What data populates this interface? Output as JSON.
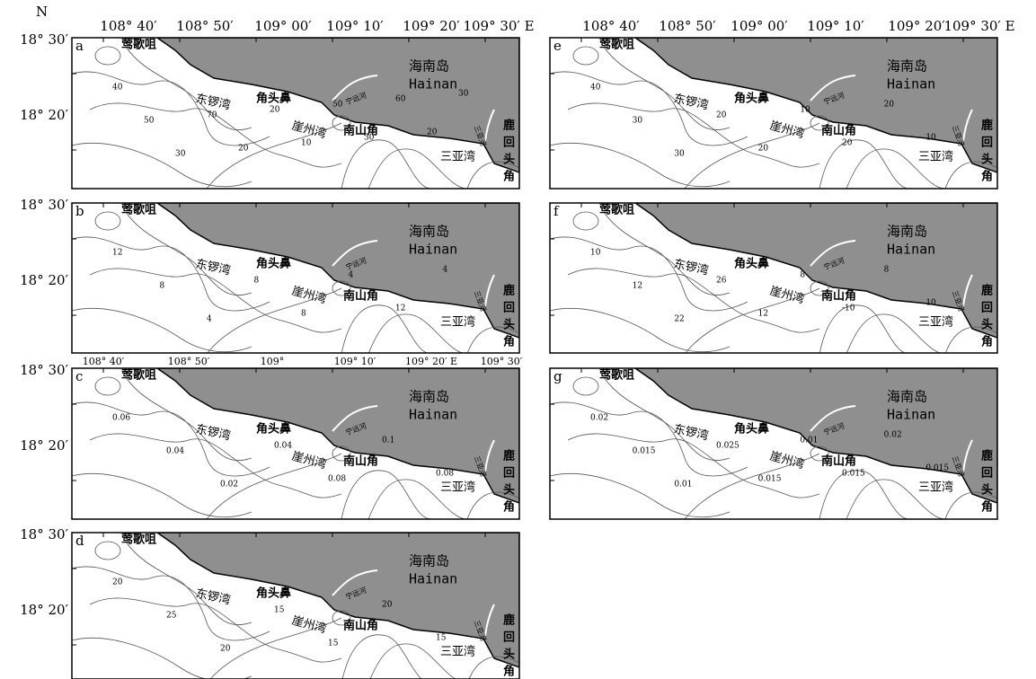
{
  "north_label": "N",
  "longitude_labels": [
    "108° 40′",
    "108° 50′",
    "109° 00′",
    "109° 10′",
    "109° 20′",
    "109° 30′ E"
  ],
  "latitude_labels": [
    "18° 30′",
    "18° 20′"
  ],
  "panel_c_longitude_labels": [
    "108° 40′",
    "108° 50′",
    "109°",
    "109° 10′",
    "109° 20′ E",
    "109° 30′"
  ],
  "place_names": {
    "island_cn": "海南岛",
    "island_en": "Hainan",
    "yinggezui": "莺歌咀",
    "dongluo_bay": "东锣湾",
    "jiaotou_cape": "角头鼻",
    "yazhou_bay": "崖州湾",
    "nanshan_cape": "南山角",
    "sanya_bay": "三亚湾",
    "luhuitou_cape": [
      "鹿",
      "回",
      "头",
      "角"
    ],
    "ningyuan_river": "宁远河",
    "sanya_river": "三亚河"
  },
  "panels": [
    {
      "letter": "a",
      "contour_labels": [
        "40",
        "50",
        "30",
        "70",
        "20",
        "20",
        "10",
        "50",
        "30",
        "60",
        "20",
        "30"
      ]
    },
    {
      "letter": "b",
      "contour_labels": [
        "12",
        "8",
        "4",
        "8",
        "8",
        "4",
        "12",
        "4"
      ]
    },
    {
      "letter": "c",
      "contour_labels": [
        "0.06",
        "0.04",
        "0.02",
        "0.04",
        "0.08",
        "0.1",
        "0.08"
      ]
    },
    {
      "letter": "d",
      "contour_labels": [
        "20",
        "25",
        "20",
        "15",
        "15",
        "20",
        "15"
      ]
    },
    {
      "letter": "e",
      "contour_labels": [
        "40",
        "30",
        "30",
        "20",
        "20",
        "10",
        "20",
        "20",
        "10"
      ]
    },
    {
      "letter": "f",
      "contour_labels": [
        "10",
        "12",
        "22",
        "26",
        "12",
        "8",
        "-10",
        "8",
        "10"
      ]
    },
    {
      "letter": "g",
      "contour_labels": [
        "0.02",
        "0.015",
        "0.01",
        "0.025",
        "0.015",
        "0.01",
        "0.015",
        "0.02",
        "0.015"
      ]
    }
  ]
}
